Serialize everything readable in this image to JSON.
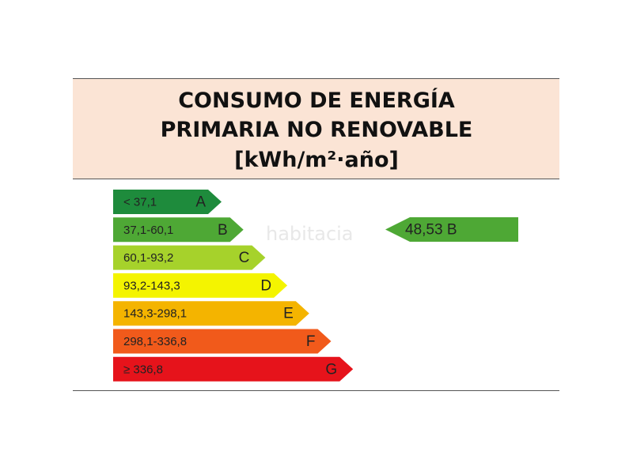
{
  "header": {
    "title_lines": [
      "CONSUMO DE ENERGÍA",
      "PRIMARIA NO RENOVABLE",
      "[kWh/m²·año]"
    ]
  },
  "bands": [
    {
      "range": "< 37,1",
      "letter": "A",
      "color": "#1e8b3c"
    },
    {
      "range": "37,1-60,1",
      "letter": "B",
      "color": "#4ea835"
    },
    {
      "range": "60,1-93,2",
      "letter": "C",
      "color": "#a6d22b"
    },
    {
      "range": "93,2-143,3",
      "letter": "D",
      "color": "#f4f400"
    },
    {
      "range": "143,3-298,1",
      "letter": "E",
      "color": "#f4b400"
    },
    {
      "range": "298,1-336,8",
      "letter": "F",
      "color": "#f15a1b"
    },
    {
      "range": "≥ 336,8",
      "letter": "G",
      "color": "#e6131b"
    }
  ],
  "indicator": {
    "label": "48,53 B",
    "color": "#4ea835"
  },
  "watermark": "habitacia"
}
